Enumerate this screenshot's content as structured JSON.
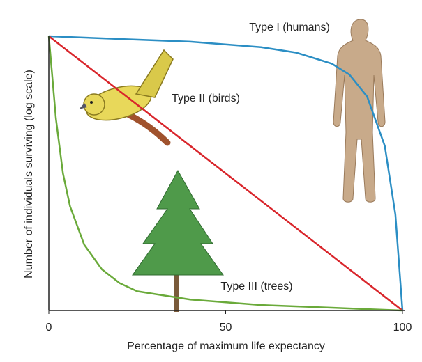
{
  "chart_data": {
    "type": "line",
    "xlabel": "Percentage of maximum life expectancy",
    "ylabel": "Number of individuals surviving (log scale)",
    "xlim": [
      0,
      100
    ],
    "xticks": [
      0,
      50,
      100
    ],
    "ylim": [
      0,
      100
    ],
    "series": [
      {
        "name": "Type I (humans)",
        "color": "#2b8ec4",
        "x": [
          0,
          20,
          40,
          60,
          70,
          80,
          85,
          90,
          95,
          98,
          100
        ],
        "values": [
          100,
          99,
          98,
          96,
          94,
          90,
          86,
          78,
          60,
          35,
          0
        ]
      },
      {
        "name": "Type II (birds)",
        "color": "#d9252b",
        "x": [
          0,
          100
        ],
        "values": [
          100,
          0
        ]
      },
      {
        "name": "Type III (trees)",
        "color": "#6aaa3a",
        "x": [
          0,
          2,
          4,
          6,
          10,
          15,
          20,
          25,
          40,
          60,
          80,
          100
        ],
        "values": [
          100,
          70,
          50,
          38,
          24,
          15,
          10,
          7,
          4,
          2,
          1,
          0
        ]
      }
    ]
  }
}
